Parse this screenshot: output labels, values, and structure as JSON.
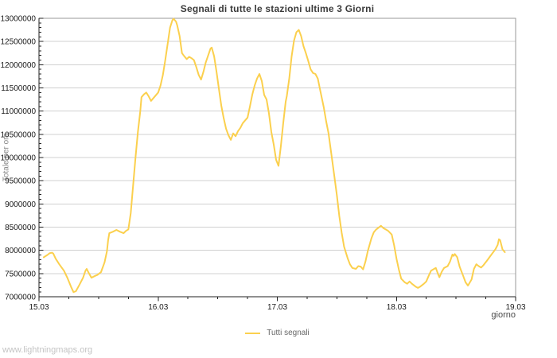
{
  "title": "Segnali di tutte le stazioni ultime 3 Giorni",
  "watermark": "www.lightningmaps.org",
  "legend": {
    "label": "Tutti segnali"
  },
  "y_axis": {
    "label": "Totale per ora",
    "min": 7000000,
    "max": 13000000,
    "major_step": 500000,
    "minor_step": 100000,
    "tick_labels": [
      "7000000",
      "7500000",
      "8000000",
      "8500000",
      "9000000",
      "9500000",
      "10000000",
      "10500000",
      "11000000",
      "11500000",
      "12000000",
      "12500000",
      "13000000"
    ]
  },
  "x_axis": {
    "label": "giorno",
    "min": 15,
    "max": 19,
    "minor_step": 0.25,
    "tick_values": [
      15,
      16,
      17,
      18,
      19
    ],
    "tick_labels": [
      "15.03",
      "16.03",
      "17.03",
      "18.03",
      "19.03"
    ]
  },
  "colors": {
    "line": "#FBD04E",
    "grid": "#d0d0d0",
    "frame": "#999999",
    "axis": "#222222",
    "tick_text": "#1a1a1a"
  },
  "chart_data": {
    "type": "line",
    "title": "Segnali di tutte le stazioni ultime 3 Giorni",
    "xlabel": "giorno",
    "ylabel": "Totale per ora",
    "xlim": [
      15,
      19
    ],
    "ylim": [
      7000000,
      13000000
    ],
    "grid": "horizontal-only",
    "legend_position": "bottom-center",
    "x_tick_labels": [
      "15.03",
      "16.03",
      "17.03",
      "18.03",
      "19.03"
    ],
    "series": [
      {
        "name": "Tutti segnali",
        "color": "#FBD04E",
        "x_unit": "day of March",
        "y_unit": "signals per hour",
        "points": [
          [
            15.04,
            7850000
          ],
          [
            15.07,
            7900000
          ],
          [
            15.09,
            7940000
          ],
          [
            15.11,
            7950000
          ],
          [
            15.12,
            7930000
          ],
          [
            15.14,
            7820000
          ],
          [
            15.17,
            7700000
          ],
          [
            15.21,
            7560000
          ],
          [
            15.24,
            7400000
          ],
          [
            15.27,
            7210000
          ],
          [
            15.29,
            7100000
          ],
          [
            15.31,
            7120000
          ],
          [
            15.34,
            7260000
          ],
          [
            15.37,
            7410000
          ],
          [
            15.39,
            7560000
          ],
          [
            15.4,
            7600000
          ],
          [
            15.42,
            7500000
          ],
          [
            15.44,
            7410000
          ],
          [
            15.47,
            7450000
          ],
          [
            15.49,
            7470000
          ],
          [
            15.52,
            7530000
          ],
          [
            15.55,
            7740000
          ],
          [
            15.57,
            7980000
          ],
          [
            15.58,
            8220000
          ],
          [
            15.59,
            8370000
          ],
          [
            15.62,
            8400000
          ],
          [
            15.65,
            8440000
          ],
          [
            15.68,
            8400000
          ],
          [
            15.71,
            8370000
          ],
          [
            15.73,
            8420000
          ],
          [
            15.75,
            8450000
          ],
          [
            15.77,
            8800000
          ],
          [
            15.79,
            9400000
          ],
          [
            15.81,
            10000000
          ],
          [
            15.83,
            10550000
          ],
          [
            15.85,
            11000000
          ],
          [
            15.86,
            11300000
          ],
          [
            15.88,
            11360000
          ],
          [
            15.9,
            11400000
          ],
          [
            15.92,
            11320000
          ],
          [
            15.94,
            11220000
          ],
          [
            15.96,
            11280000
          ],
          [
            15.98,
            11340000
          ],
          [
            16.0,
            11400000
          ],
          [
            16.02,
            11550000
          ],
          [
            16.04,
            11780000
          ],
          [
            16.06,
            12100000
          ],
          [
            16.08,
            12450000
          ],
          [
            16.1,
            12800000
          ],
          [
            16.12,
            12960000
          ],
          [
            16.13,
            12990000
          ],
          [
            16.15,
            12930000
          ],
          [
            16.16,
            12850000
          ],
          [
            16.18,
            12620000
          ],
          [
            16.2,
            12250000
          ],
          [
            16.22,
            12180000
          ],
          [
            16.24,
            12120000
          ],
          [
            16.26,
            12170000
          ],
          [
            16.28,
            12140000
          ],
          [
            16.3,
            12100000
          ],
          [
            16.32,
            11950000
          ],
          [
            16.34,
            11780000
          ],
          [
            16.36,
            11680000
          ],
          [
            16.38,
            11850000
          ],
          [
            16.4,
            12050000
          ],
          [
            16.42,
            12200000
          ],
          [
            16.44,
            12350000
          ],
          [
            16.45,
            12370000
          ],
          [
            16.47,
            12180000
          ],
          [
            16.49,
            11850000
          ],
          [
            16.51,
            11480000
          ],
          [
            16.53,
            11120000
          ],
          [
            16.55,
            10850000
          ],
          [
            16.57,
            10620000
          ],
          [
            16.59,
            10480000
          ],
          [
            16.61,
            10380000
          ],
          [
            16.63,
            10520000
          ],
          [
            16.65,
            10460000
          ],
          [
            16.67,
            10570000
          ],
          [
            16.69,
            10640000
          ],
          [
            16.71,
            10740000
          ],
          [
            16.73,
            10800000
          ],
          [
            16.75,
            10860000
          ],
          [
            16.77,
            11100000
          ],
          [
            16.79,
            11360000
          ],
          [
            16.81,
            11550000
          ],
          [
            16.83,
            11700000
          ],
          [
            16.85,
            11800000
          ],
          [
            16.87,
            11650000
          ],
          [
            16.89,
            11350000
          ],
          [
            16.91,
            11250000
          ],
          [
            16.93,
            10950000
          ],
          [
            16.95,
            10550000
          ],
          [
            16.97,
            10280000
          ],
          [
            16.99,
            9950000
          ],
          [
            17.01,
            9820000
          ],
          [
            17.03,
            10250000
          ],
          [
            17.05,
            10750000
          ],
          [
            17.07,
            11200000
          ],
          [
            17.08,
            11330000
          ],
          [
            17.1,
            11700000
          ],
          [
            17.12,
            12180000
          ],
          [
            17.14,
            12520000
          ],
          [
            17.16,
            12700000
          ],
          [
            17.18,
            12750000
          ],
          [
            17.2,
            12620000
          ],
          [
            17.22,
            12400000
          ],
          [
            17.24,
            12250000
          ],
          [
            17.26,
            12080000
          ],
          [
            17.28,
            11900000
          ],
          [
            17.3,
            11820000
          ],
          [
            17.32,
            11800000
          ],
          [
            17.34,
            11700000
          ],
          [
            17.36,
            11450000
          ],
          [
            17.39,
            11080000
          ],
          [
            17.41,
            10780000
          ],
          [
            17.43,
            10520000
          ],
          [
            17.46,
            9950000
          ],
          [
            17.48,
            9570000
          ],
          [
            17.5,
            9180000
          ],
          [
            17.52,
            8740000
          ],
          [
            17.54,
            8380000
          ],
          [
            17.56,
            8080000
          ],
          [
            17.59,
            7830000
          ],
          [
            17.61,
            7700000
          ],
          [
            17.63,
            7620000
          ],
          [
            17.66,
            7600000
          ],
          [
            17.68,
            7660000
          ],
          [
            17.7,
            7650000
          ],
          [
            17.72,
            7590000
          ],
          [
            17.74,
            7760000
          ],
          [
            17.76,
            7990000
          ],
          [
            17.79,
            8260000
          ],
          [
            17.81,
            8390000
          ],
          [
            17.83,
            8450000
          ],
          [
            17.86,
            8510000
          ],
          [
            17.87,
            8530000
          ],
          [
            17.89,
            8480000
          ],
          [
            17.91,
            8450000
          ],
          [
            17.93,
            8420000
          ],
          [
            17.96,
            8340000
          ],
          [
            17.98,
            8110000
          ],
          [
            18.0,
            7820000
          ],
          [
            18.02,
            7590000
          ],
          [
            18.04,
            7390000
          ],
          [
            18.07,
            7310000
          ],
          [
            18.09,
            7280000
          ],
          [
            18.11,
            7330000
          ],
          [
            18.13,
            7280000
          ],
          [
            18.16,
            7220000
          ],
          [
            18.18,
            7190000
          ],
          [
            18.2,
            7220000
          ],
          [
            18.23,
            7280000
          ],
          [
            18.25,
            7330000
          ],
          [
            18.27,
            7450000
          ],
          [
            18.29,
            7560000
          ],
          [
            18.33,
            7620000
          ],
          [
            18.35,
            7480000
          ],
          [
            18.36,
            7420000
          ],
          [
            18.38,
            7540000
          ],
          [
            18.4,
            7620000
          ],
          [
            18.43,
            7660000
          ],
          [
            18.45,
            7760000
          ],
          [
            18.47,
            7910000
          ],
          [
            18.48,
            7880000
          ],
          [
            18.49,
            7920000
          ],
          [
            18.51,
            7850000
          ],
          [
            18.53,
            7650000
          ],
          [
            18.56,
            7450000
          ],
          [
            18.58,
            7310000
          ],
          [
            18.6,
            7240000
          ],
          [
            18.63,
            7370000
          ],
          [
            18.65,
            7600000
          ],
          [
            18.67,
            7700000
          ],
          [
            18.69,
            7660000
          ],
          [
            18.71,
            7630000
          ],
          [
            18.73,
            7680000
          ],
          [
            18.76,
            7780000
          ],
          [
            18.78,
            7850000
          ],
          [
            18.8,
            7920000
          ],
          [
            18.83,
            8020000
          ],
          [
            18.85,
            8120000
          ],
          [
            18.86,
            8240000
          ],
          [
            18.87,
            8220000
          ],
          [
            18.89,
            8020000
          ],
          [
            18.91,
            7960000
          ]
        ]
      }
    ]
  }
}
